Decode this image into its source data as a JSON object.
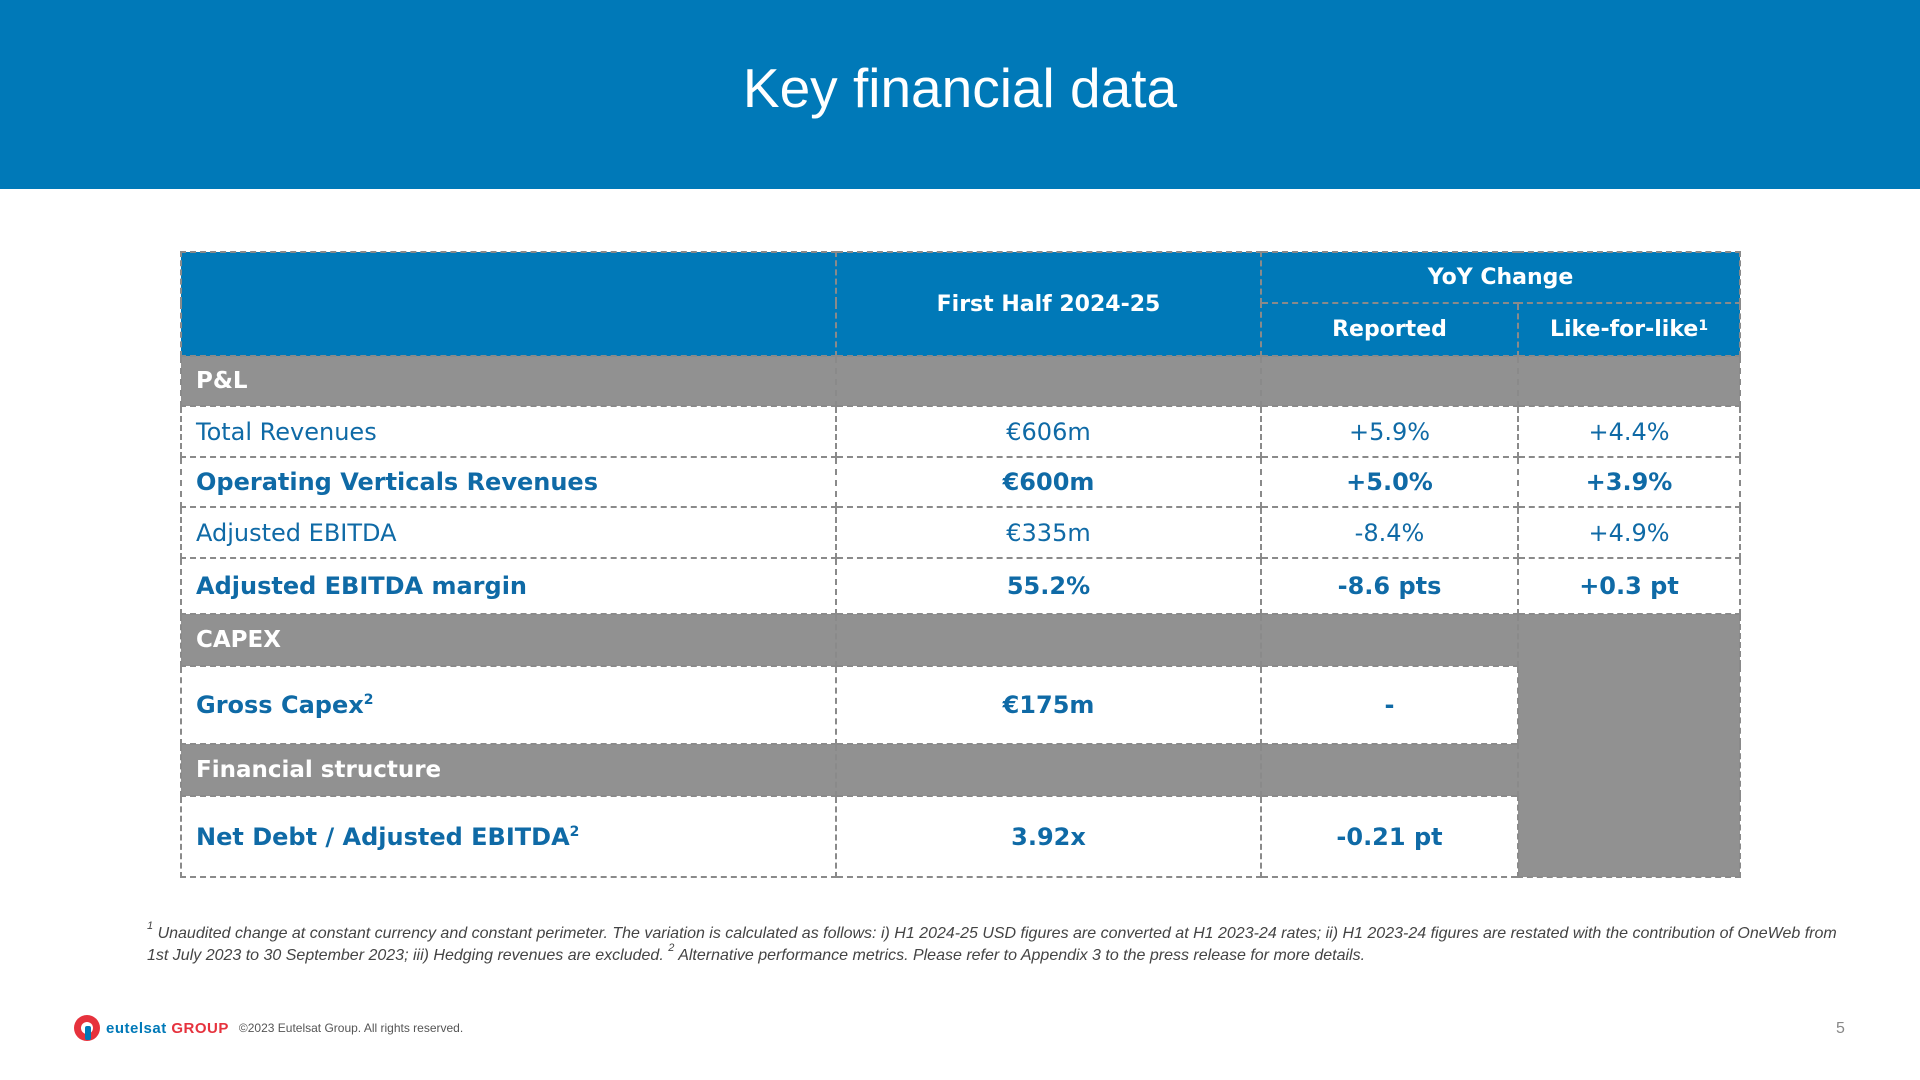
{
  "header": {
    "title": "Key financial data"
  },
  "table": {
    "col_first_half": "First Half 2024-25",
    "col_yoy": "YoY Change",
    "col_reported": "Reported",
    "col_lfl": "Like-for-like",
    "col_lfl_sup": "1",
    "sections": {
      "pl": "P&L",
      "capex": "CAPEX",
      "financial": "Financial structure"
    },
    "rows": [
      {
        "label": "Total Revenues",
        "first_half": "€606m",
        "reported": "+5.9%",
        "lfl": "+4.4%"
      },
      {
        "label": "Operating Verticals Revenues",
        "first_half": "€600m",
        "reported": "+5.0%",
        "lfl": "+3.9%"
      },
      {
        "label": "Adjusted EBITDA",
        "first_half": "€335m",
        "reported": "-8.4%",
        "lfl": "+4.9%"
      },
      {
        "label": "Adjusted EBITDA margin",
        "first_half": "55.2%",
        "reported": "-8.6 pts",
        "lfl": "+0.3 pt"
      },
      {
        "label": "Gross Capex",
        "label_sup": "2",
        "first_half": "€175m",
        "reported": "-"
      },
      {
        "label": "Net Debt / Adjusted EBITDA",
        "label_sup": "2",
        "first_half": "3.92x",
        "reported": "-0.21 pt"
      }
    ]
  },
  "footnote": {
    "sup1": "1",
    "text1": "Unaudited change at constant currency and constant perimeter. The variation is calculated as follows: i) H1 2024-25 USD figures are converted at H1 2023-24 rates; ii) H1 2023-24 figures are restated with the contribution of OneWeb from 1st July 2023 to 30 September 2023; iii) Hedging revenues are excluded.",
    "sup2": "2",
    "text2": "Alternative performance metrics. Please refer to Appendix 3 to the press release for more details."
  },
  "footer": {
    "logo_main": "eutelsat",
    "logo_group": "GROUP",
    "copyright": "©2023 Eutelsat Group. All rights reserved.",
    "page": "5"
  },
  "colors": {
    "brand_blue": "#0079b8",
    "section_grey": "#919191",
    "text_blue": "#0f6aa6",
    "logo_red": "#e6323d"
  }
}
